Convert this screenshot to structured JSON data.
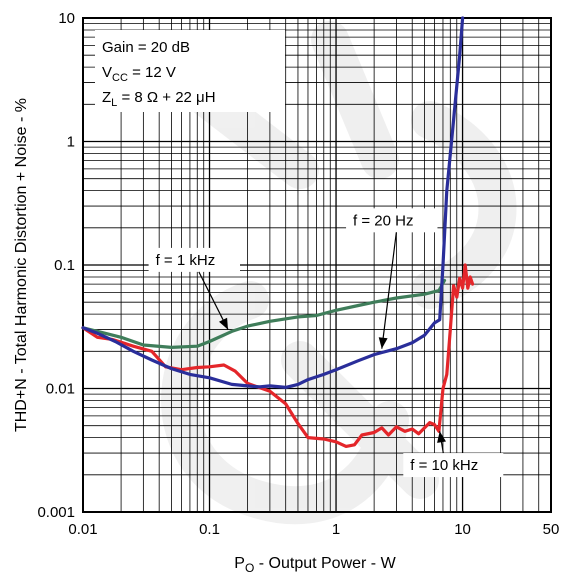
{
  "chart_data": {
    "type": "line",
    "xscale": "log",
    "yscale": "log",
    "xlim": [
      0.01,
      50
    ],
    "ylim": [
      0.001,
      10
    ],
    "grid": true,
    "xlabel": {
      "main": "P",
      "sub": "O",
      "rest": " - Output Power - W"
    },
    "ylabel": "THD+N - Total Harmonic Distortion + Noise - %",
    "x_ticks": [
      {
        "value": 0.01,
        "label": "0.01"
      },
      {
        "value": 0.1,
        "label": "0.1"
      },
      {
        "value": 1,
        "label": "1"
      },
      {
        "value": 10,
        "label": "10"
      },
      {
        "value": 50,
        "label": "50"
      }
    ],
    "y_ticks": [
      {
        "value": 0.001,
        "label": "0.001"
      },
      {
        "value": 0.01,
        "label": "0.01"
      },
      {
        "value": 0.1,
        "label": "0.1"
      },
      {
        "value": 1,
        "label": "1"
      },
      {
        "value": 10,
        "label": "10"
      }
    ],
    "conditions": [
      {
        "main": "Gain = 20 dB",
        "sub": "",
        "rest": ""
      },
      {
        "main": "V",
        "sub": "CC",
        "rest": " = 12 V"
      },
      {
        "main": "Z",
        "sub": "L",
        "rest": " = 8 Ω + 22 μH"
      }
    ],
    "series": [
      {
        "key": "f20hz",
        "label": "f = 20 Hz",
        "color": "#2a2e9a",
        "points": [
          [
            0.01,
            0.031
          ],
          [
            0.013,
            0.028
          ],
          [
            0.018,
            0.024
          ],
          [
            0.025,
            0.02
          ],
          [
            0.035,
            0.017
          ],
          [
            0.05,
            0.0145
          ],
          [
            0.07,
            0.013
          ],
          [
            0.1,
            0.0122
          ],
          [
            0.15,
            0.0108
          ],
          [
            0.2,
            0.0105
          ],
          [
            0.25,
            0.0103
          ],
          [
            0.3,
            0.0105
          ],
          [
            0.4,
            0.0102
          ],
          [
            0.5,
            0.0108
          ],
          [
            0.6,
            0.0118
          ],
          [
            0.8,
            0.013
          ],
          [
            1,
            0.0142
          ],
          [
            1.5,
            0.0168
          ],
          [
            2,
            0.0188
          ],
          [
            3,
            0.021
          ],
          [
            4,
            0.0235
          ],
          [
            5,
            0.027
          ],
          [
            6,
            0.034
          ],
          [
            6.6,
            0.036
          ],
          [
            7,
            0.1
          ],
          [
            7.5,
            0.4
          ],
          [
            8.5,
            1.5
          ],
          [
            9.5,
            5
          ],
          [
            10,
            10
          ]
        ]
      },
      {
        "key": "f1khz",
        "label": "f = 1 kHz",
        "color": "#3f7d5a",
        "points": [
          [
            0.01,
            0.031
          ],
          [
            0.015,
            0.028
          ],
          [
            0.02,
            0.026
          ],
          [
            0.03,
            0.0225
          ],
          [
            0.05,
            0.0215
          ],
          [
            0.08,
            0.022
          ],
          [
            0.1,
            0.024
          ],
          [
            0.15,
            0.029
          ],
          [
            0.2,
            0.032
          ],
          [
            0.3,
            0.035
          ],
          [
            0.5,
            0.038
          ],
          [
            0.7,
            0.039
          ],
          [
            1,
            0.043
          ],
          [
            1.5,
            0.047
          ],
          [
            2,
            0.05
          ],
          [
            3,
            0.054
          ],
          [
            5,
            0.058
          ],
          [
            6.5,
            0.062
          ],
          [
            7.2,
            0.075
          ]
        ]
      },
      {
        "key": "f10khz",
        "label": "f = 10 kHz",
        "color": "#e4262a",
        "points": [
          [
            0.01,
            0.031
          ],
          [
            0.013,
            0.026
          ],
          [
            0.017,
            0.025
          ],
          [
            0.025,
            0.022
          ],
          [
            0.035,
            0.02
          ],
          [
            0.045,
            0.015
          ],
          [
            0.06,
            0.0142
          ],
          [
            0.08,
            0.0148
          ],
          [
            0.1,
            0.015
          ],
          [
            0.13,
            0.0155
          ],
          [
            0.16,
            0.0138
          ],
          [
            0.2,
            0.011
          ],
          [
            0.3,
            0.0095
          ],
          [
            0.4,
            0.0075
          ],
          [
            0.5,
            0.0052
          ],
          [
            0.6,
            0.004
          ],
          [
            0.8,
            0.0039
          ],
          [
            1,
            0.0037
          ],
          [
            1.2,
            0.0034
          ],
          [
            1.4,
            0.0035
          ],
          [
            1.6,
            0.0042
          ],
          [
            2,
            0.0044
          ],
          [
            2.3,
            0.0048
          ],
          [
            2.6,
            0.0042
          ],
          [
            3,
            0.0049
          ],
          [
            3.5,
            0.0045
          ],
          [
            4,
            0.0047
          ],
          [
            4.5,
            0.0043
          ],
          [
            5,
            0.0048
          ],
          [
            5.5,
            0.0053
          ],
          [
            6,
            0.0051
          ],
          [
            6.5,
            0.0045
          ],
          [
            7,
            0.01
          ],
          [
            7.5,
            0.013
          ],
          [
            8,
            0.03
          ],
          [
            8.5,
            0.068
          ],
          [
            9,
            0.055
          ],
          [
            9.5,
            0.078
          ],
          [
            10,
            0.065
          ],
          [
            10.5,
            0.1
          ],
          [
            11,
            0.065
          ],
          [
            11.5,
            0.08
          ],
          [
            12,
            0.07
          ]
        ]
      }
    ],
    "annotations": [
      {
        "series": "f1khz",
        "text": "f = 1 kHz",
        "box": [
          0.033,
          0.11
        ],
        "arrow_to": [
          0.14,
          0.03
        ]
      },
      {
        "series": "f20hz",
        "text": "f = 20 Hz",
        "box": [
          1.2,
          0.23
        ],
        "arrow_to": [
          2.3,
          0.021
        ]
      },
      {
        "series": "f10khz",
        "text": "f = 10 kHz",
        "box": [
          3.4,
          0.0024
        ],
        "arrow_to": [
          6.6,
          0.0045
        ]
      }
    ]
  }
}
